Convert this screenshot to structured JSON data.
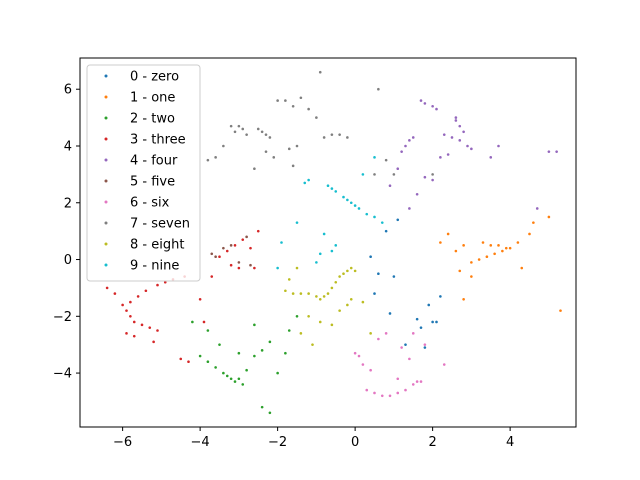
{
  "chart_data": {
    "type": "scatter",
    "title": "",
    "xlabel": "",
    "ylabel": "",
    "xlim": [
      -7.1,
      5.7
    ],
    "ylim": [
      -5.9,
      7.1
    ],
    "xticks": [
      -6,
      -4,
      -2,
      0,
      2,
      4
    ],
    "xtick_labels": [
      "−6",
      "−4",
      "−2",
      "0",
      "2",
      "4"
    ],
    "yticks": [
      -4,
      -2,
      0,
      2,
      4,
      6
    ],
    "ytick_labels": [
      "−4",
      "−2",
      "0",
      "2",
      "4",
      "6"
    ],
    "grid": false,
    "legend_position": "top-left",
    "series": [
      {
        "name": "0 - zero",
        "color": "#1f77b4",
        "points": [
          [
            0.5,
            -1.2
          ],
          [
            0.9,
            -1.9
          ],
          [
            1.6,
            -2.1
          ],
          [
            1.7,
            -2.4
          ],
          [
            2.0,
            -2.2
          ],
          [
            2.1,
            -2.2
          ],
          [
            1.8,
            -3.1
          ],
          [
            1.3,
            -3.0
          ],
          [
            2.2,
            -1.3
          ],
          [
            1.9,
            -1.6
          ],
          [
            0.8,
            1.0
          ],
          [
            1.1,
            1.4
          ],
          [
            0.4,
            0.1
          ],
          [
            0.6,
            -0.5
          ],
          [
            1.0,
            -0.6
          ]
        ]
      },
      {
        "name": "1 - one",
        "color": "#ff7f0e",
        "points": [
          [
            3.3,
            0.6
          ],
          [
            3.5,
            0.5
          ],
          [
            3.7,
            0.5
          ],
          [
            3.9,
            0.4
          ],
          [
            4.0,
            0.4
          ],
          [
            3.8,
            0.3
          ],
          [
            3.6,
            0.2
          ],
          [
            3.4,
            0.1
          ],
          [
            3.2,
            0.0
          ],
          [
            3.0,
            -0.1
          ],
          [
            2.8,
            0.5
          ],
          [
            4.2,
            0.6
          ],
          [
            4.6,
            1.3
          ],
          [
            5.0,
            1.5
          ],
          [
            5.3,
            -1.8
          ],
          [
            2.2,
            0.6
          ],
          [
            2.4,
            0.9
          ],
          [
            2.6,
            0.3
          ],
          [
            3.0,
            -0.6
          ],
          [
            4.3,
            -0.3
          ],
          [
            4.5,
            0.9
          ],
          [
            2.7,
            -0.4
          ],
          [
            2.8,
            -1.4
          ]
        ]
      },
      {
        "name": "2 - two",
        "color": "#2ca02c",
        "points": [
          [
            -3.2,
            -4.2
          ],
          [
            -3.1,
            -4.3
          ],
          [
            -3.0,
            -4.2
          ],
          [
            -3.3,
            -4.1
          ],
          [
            -3.4,
            -4.0
          ],
          [
            -3.6,
            -3.8
          ],
          [
            -3.8,
            -3.6
          ],
          [
            -2.9,
            -4.4
          ],
          [
            -2.8,
            -3.9
          ],
          [
            -2.6,
            -3.4
          ],
          [
            -3.0,
            -3.3
          ],
          [
            -2.4,
            -3.2
          ],
          [
            -2.2,
            -2.9
          ],
          [
            -1.8,
            -3.3
          ],
          [
            -2.0,
            -4.0
          ],
          [
            -2.2,
            -5.4
          ],
          [
            -2.4,
            -5.2
          ],
          [
            -3.8,
            -2.5
          ],
          [
            -4.2,
            -2.2
          ],
          [
            -3.5,
            -3.0
          ],
          [
            -1.7,
            -2.5
          ],
          [
            -1.5,
            -2.0
          ],
          [
            -2.6,
            -2.3
          ],
          [
            -4.0,
            -3.4
          ]
        ]
      },
      {
        "name": "3 - three",
        "color": "#d62728",
        "points": [
          [
            -6.0,
            -1.6
          ],
          [
            -5.9,
            -1.8
          ],
          [
            -5.8,
            -2.0
          ],
          [
            -5.7,
            -2.2
          ],
          [
            -5.5,
            -2.3
          ],
          [
            -5.3,
            -2.4
          ],
          [
            -5.1,
            -2.5
          ],
          [
            -5.8,
            -1.5
          ],
          [
            -5.6,
            -1.3
          ],
          [
            -5.4,
            -1.1
          ],
          [
            -5.1,
            -0.9
          ],
          [
            -4.9,
            -0.8
          ],
          [
            -4.7,
            -0.7
          ],
          [
            -4.4,
            -0.6
          ],
          [
            -6.4,
            -1.0
          ],
          [
            -6.2,
            -1.2
          ],
          [
            -5.9,
            -2.6
          ],
          [
            -5.7,
            -2.7
          ],
          [
            -5.2,
            -2.9
          ],
          [
            -4.5,
            -3.5
          ],
          [
            -4.3,
            -3.6
          ],
          [
            -3.7,
            -0.6
          ],
          [
            -3.5,
            0.1
          ],
          [
            -3.3,
            0.3
          ],
          [
            -3.1,
            0.5
          ],
          [
            -2.9,
            0.7
          ],
          [
            -2.7,
            0.4
          ],
          [
            -2.5,
            1.0
          ],
          [
            -3.2,
            -0.2
          ],
          [
            -3.0,
            -0.3
          ],
          [
            -2.6,
            -0.3
          ],
          [
            -4.0,
            -1.4
          ],
          [
            -3.9,
            -2.2
          ]
        ]
      },
      {
        "name": "4 - four",
        "color": "#9467bd",
        "points": [
          [
            2.3,
            4.4
          ],
          [
            2.5,
            4.3
          ],
          [
            2.7,
            4.2
          ],
          [
            2.9,
            4.0
          ],
          [
            3.0,
            3.9
          ],
          [
            2.8,
            4.5
          ],
          [
            2.7,
            4.7
          ],
          [
            2.6,
            4.9
          ],
          [
            2.6,
            5.0
          ],
          [
            1.8,
            5.5
          ],
          [
            1.7,
            5.6
          ],
          [
            2.0,
            5.4
          ],
          [
            2.1,
            5.3
          ],
          [
            1.5,
            4.3
          ],
          [
            1.4,
            4.2
          ],
          [
            1.3,
            4.0
          ],
          [
            1.2,
            3.8
          ],
          [
            2.2,
            3.6
          ],
          [
            2.4,
            3.7
          ],
          [
            1.1,
            3.2
          ],
          [
            0.9,
            2.6
          ],
          [
            1.4,
            1.8
          ],
          [
            1.6,
            2.3
          ],
          [
            1.8,
            2.9
          ],
          [
            2.0,
            2.8
          ],
          [
            3.5,
            3.6
          ],
          [
            3.7,
            4.0
          ],
          [
            4.7,
            1.8
          ],
          [
            5.0,
            3.8
          ],
          [
            5.2,
            3.8
          ]
        ]
      },
      {
        "name": "5 - five",
        "color": "#8c564b",
        "points": [
          [
            -3.6,
            0.1
          ],
          [
            -3.4,
            0.4
          ],
          [
            -3.7,
            0.2
          ],
          [
            -3.2,
            0.5
          ],
          [
            -2.8,
            0.8
          ],
          [
            -3.0,
            -0.1
          ],
          [
            -2.7,
            -0.2
          ]
        ]
      },
      {
        "name": "6 - six",
        "color": "#e377c2",
        "points": [
          [
            0.3,
            -4.6
          ],
          [
            0.5,
            -4.7
          ],
          [
            0.7,
            -4.8
          ],
          [
            0.9,
            -4.8
          ],
          [
            1.1,
            -4.7
          ],
          [
            1.3,
            -4.6
          ],
          [
            1.5,
            -4.4
          ],
          [
            1.6,
            -4.3
          ],
          [
            1.7,
            -4.3
          ],
          [
            0.2,
            -3.7
          ],
          [
            0.4,
            -3.9
          ],
          [
            0.1,
            -3.4
          ],
          [
            0.0,
            -3.3
          ],
          [
            1.2,
            -3.1
          ],
          [
            1.4,
            -3.5
          ],
          [
            1.1,
            -4.2
          ],
          [
            1.8,
            -3.0
          ],
          [
            2.3,
            -3.7
          ],
          [
            0.6,
            -2.8
          ],
          [
            0.8,
            -2.6
          ],
          [
            1.5,
            -2.6
          ]
        ]
      },
      {
        "name": "7 - seven",
        "color": "#7f7f7f",
        "points": [
          [
            -3.0,
            4.7
          ],
          [
            -2.9,
            4.6
          ],
          [
            -3.1,
            4.5
          ],
          [
            -2.8,
            4.4
          ],
          [
            -3.2,
            4.7
          ],
          [
            -2.5,
            4.6
          ],
          [
            -2.4,
            4.5
          ],
          [
            -2.3,
            4.4
          ],
          [
            -2.2,
            4.3
          ],
          [
            -2.0,
            5.6
          ],
          [
            -1.8,
            5.6
          ],
          [
            -1.6,
            5.4
          ],
          [
            -1.4,
            5.7
          ],
          [
            -1.2,
            5.3
          ],
          [
            -1.0,
            5.0
          ],
          [
            -0.9,
            6.6
          ],
          [
            -0.6,
            4.4
          ],
          [
            -0.8,
            4.3
          ],
          [
            -0.4,
            4.4
          ],
          [
            -0.2,
            4.3
          ],
          [
            -1.7,
            3.9
          ],
          [
            -1.5,
            4.0
          ],
          [
            -1.6,
            3.3
          ],
          [
            -2.1,
            3.6
          ],
          [
            -2.3,
            3.8
          ],
          [
            -3.6,
            3.6
          ],
          [
            -3.8,
            3.5
          ],
          [
            -3.4,
            4.0
          ],
          [
            -2.6,
            3.2
          ],
          [
            0.5,
            3.0
          ],
          [
            0.8,
            3.5
          ],
          [
            1.0,
            3.0
          ],
          [
            0.6,
            6.0
          ],
          [
            2.0,
            3.0
          ]
        ]
      },
      {
        "name": "8 - eight",
        "color": "#bcbd22",
        "points": [
          [
            -0.8,
            -1.3
          ],
          [
            -0.7,
            -1.2
          ],
          [
            -0.6,
            -1.0
          ],
          [
            -0.5,
            -0.8
          ],
          [
            -0.4,
            -0.6
          ],
          [
            -0.3,
            -0.5
          ],
          [
            -0.2,
            -0.4
          ],
          [
            -0.1,
            -0.3
          ],
          [
            0.0,
            -0.4
          ],
          [
            -0.9,
            -1.4
          ],
          [
            -1.0,
            -1.3
          ],
          [
            -1.2,
            -1.2
          ],
          [
            -1.4,
            -1.2
          ],
          [
            -1.6,
            -1.2
          ],
          [
            -1.8,
            -1.1
          ],
          [
            -0.9,
            -2.2
          ],
          [
            -0.6,
            -2.3
          ],
          [
            -0.4,
            -1.8
          ],
          [
            -0.2,
            -1.6
          ],
          [
            -0.1,
            -1.4
          ],
          [
            -1.2,
            -2.0
          ],
          [
            -1.5,
            -0.3
          ],
          [
            -1.7,
            -0.7
          ],
          [
            0.2,
            -1.5
          ],
          [
            0.4,
            -2.6
          ],
          [
            -1.4,
            -2.6
          ],
          [
            -1.1,
            -3.0
          ]
        ]
      },
      {
        "name": "9 - nine",
        "color": "#17becf",
        "points": [
          [
            -0.2,
            2.1
          ],
          [
            -0.1,
            2.0
          ],
          [
            0.0,
            1.9
          ],
          [
            0.1,
            1.8
          ],
          [
            -0.3,
            2.2
          ],
          [
            -0.5,
            2.4
          ],
          [
            -0.6,
            2.5
          ],
          [
            -0.7,
            2.6
          ],
          [
            -1.2,
            2.8
          ],
          [
            -1.3,
            2.7
          ],
          [
            0.3,
            1.6
          ],
          [
            0.5,
            1.5
          ],
          [
            0.7,
            1.3
          ],
          [
            -0.8,
            0.9
          ],
          [
            -0.5,
            0.5
          ],
          [
            -0.6,
            0.3
          ],
          [
            -1.0,
            -0.1
          ],
          [
            0.5,
            3.6
          ],
          [
            0.2,
            3.0
          ],
          [
            -1.5,
            1.3
          ],
          [
            -1.9,
            0.6
          ],
          [
            -2.0,
            -0.3
          ],
          [
            -0.9,
            0.2
          ]
        ]
      }
    ]
  }
}
